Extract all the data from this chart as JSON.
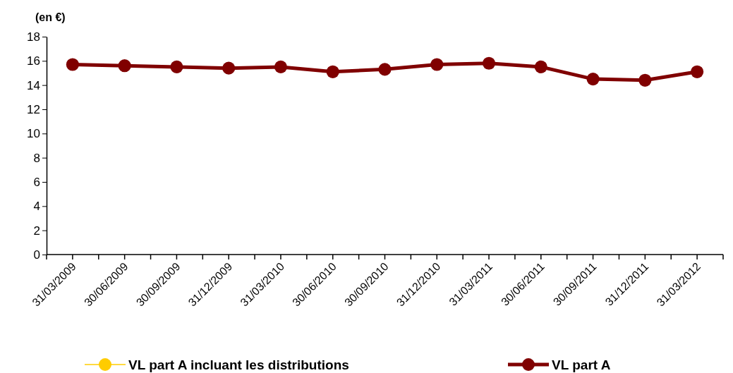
{
  "chart_data": {
    "type": "line",
    "ylabel": "(en €)",
    "categories": [
      "31/03/2009",
      "30/06/2009",
      "30/09/2009",
      "31/12/2009",
      "31/03/2010",
      "30/06/2010",
      "30/09/2010",
      "31/12/2010",
      "31/03/2011",
      "30/06/2011",
      "30/09/2011",
      "31/12/2011",
      "31/03/2012"
    ],
    "series": [
      {
        "name": "VL part A incluant les distributions",
        "color": "#ffcc00",
        "values": [
          null,
          null,
          null,
          null,
          null,
          null,
          null,
          null,
          null,
          null,
          null,
          null,
          null
        ]
      },
      {
        "name": "VL part A",
        "color": "#800000",
        "values": [
          15.7,
          15.6,
          15.5,
          15.4,
          15.5,
          15.1,
          15.3,
          15.7,
          15.8,
          15.5,
          14.5,
          14.4,
          15.1
        ]
      }
    ],
    "ylim": [
      0,
      18
    ],
    "yticks": [
      0,
      2,
      4,
      6,
      8,
      10,
      12,
      14,
      16,
      18
    ],
    "grid": false,
    "legend": "bottom",
    "marker": "circle",
    "line_style": "solid"
  }
}
